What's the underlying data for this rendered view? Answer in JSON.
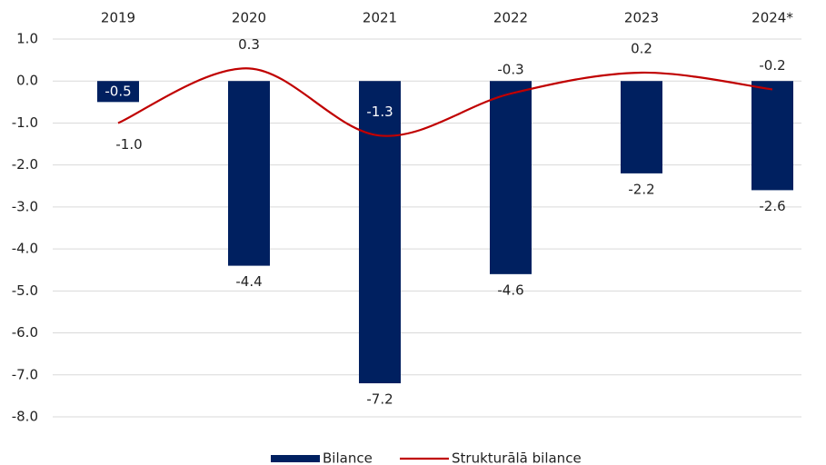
{
  "chart_data": {
    "type": "bar-line",
    "categories": [
      "2019",
      "2020",
      "2021",
      "2022",
      "2023",
      "2024*"
    ],
    "series": [
      {
        "name": "Bilance",
        "type": "bar",
        "color": "#002060",
        "values": [
          -0.5,
          -4.4,
          -7.2,
          -4.6,
          -2.2,
          -2.6
        ],
        "value_labels": [
          "-0.5",
          "-4.4",
          "-7.2",
          "-4.6",
          "-2.2",
          "-2.6"
        ]
      },
      {
        "name": "Strukturālā bilance",
        "type": "line",
        "color": "#c00000",
        "values": [
          -1.0,
          0.3,
          -1.3,
          -0.3,
          0.2,
          -0.2
        ],
        "value_labels": [
          "-1.0",
          "0.3",
          "-1.3",
          "-0.3",
          "0.2",
          "-0.2"
        ]
      }
    ],
    "ylim": [
      -8,
      1
    ],
    "yticks": [
      {
        "value": 1,
        "label": "1.0"
      },
      {
        "value": 0,
        "label": "0.0"
      },
      {
        "value": -1,
        "label": "-1.0"
      },
      {
        "value": -2,
        "label": "-2.0"
      },
      {
        "value": -3,
        "label": "-3.0"
      },
      {
        "value": -4,
        "label": "-4.0"
      },
      {
        "value": -5,
        "label": "-5.0"
      },
      {
        "value": -6,
        "label": "-6.0"
      },
      {
        "value": -7,
        "label": "-7.0"
      },
      {
        "value": -8,
        "label": "-8.0"
      }
    ],
    "grid": true
  }
}
